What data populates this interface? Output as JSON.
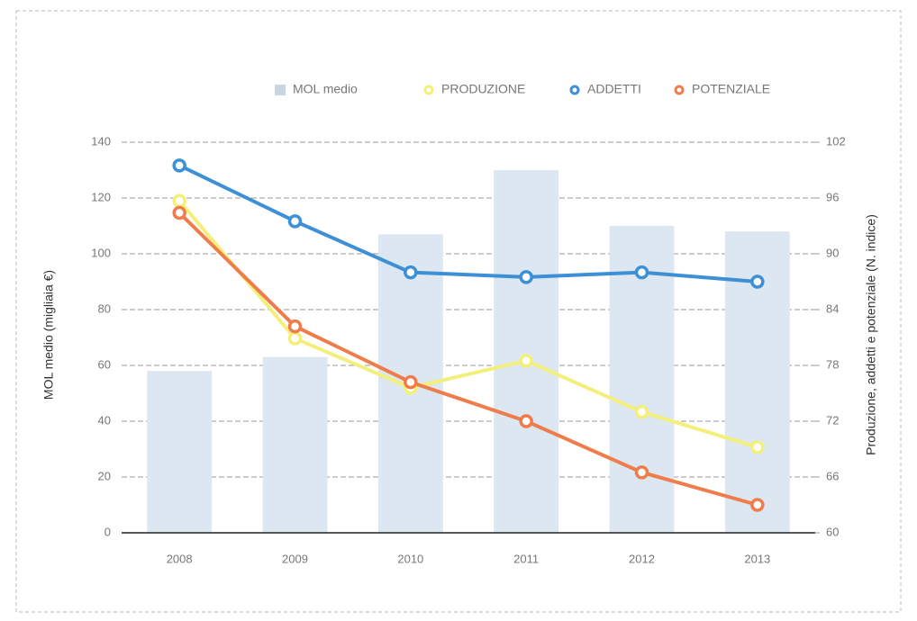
{
  "chart_data": {
    "type": "bar_line",
    "ylabel": "MOL medio (migliaia €)",
    "y2label": "Produzione, addetti e potenziale (N. indice)",
    "categories": [
      "2008",
      "2009",
      "2010",
      "2011",
      "2012",
      "2013"
    ],
    "ylim": [
      0,
      140
    ],
    "yticks": [
      0,
      20,
      40,
      60,
      80,
      100,
      120,
      140
    ],
    "y2lim": [
      60,
      102
    ],
    "y2ticks": [
      60,
      66,
      72,
      78,
      84,
      90,
      96,
      102
    ],
    "grid": true,
    "legend": "top",
    "series": [
      {
        "name": "MOL medio",
        "type": "bar",
        "color": "#dde7f2",
        "values": [
          58,
          63,
          107,
          130,
          110,
          108
        ]
      },
      {
        "name": "PRODUZIONE",
        "type": "line",
        "axis": "y2",
        "color": "#f4ef7a",
        "values": [
          95.7,
          80.9,
          75.6,
          78.5,
          73,
          69.2
        ]
      },
      {
        "name": "ADDETTI",
        "type": "line",
        "axis": "y2",
        "color": "#3d8fd6",
        "values": [
          99.5,
          93.5,
          88,
          87.5,
          88,
          87
        ]
      },
      {
        "name": "POTENZIALE",
        "type": "line",
        "axis": "y2",
        "color": "#ee7d4b",
        "values": [
          94.4,
          82.2,
          76.2,
          72,
          66.5,
          63
        ]
      }
    ]
  }
}
